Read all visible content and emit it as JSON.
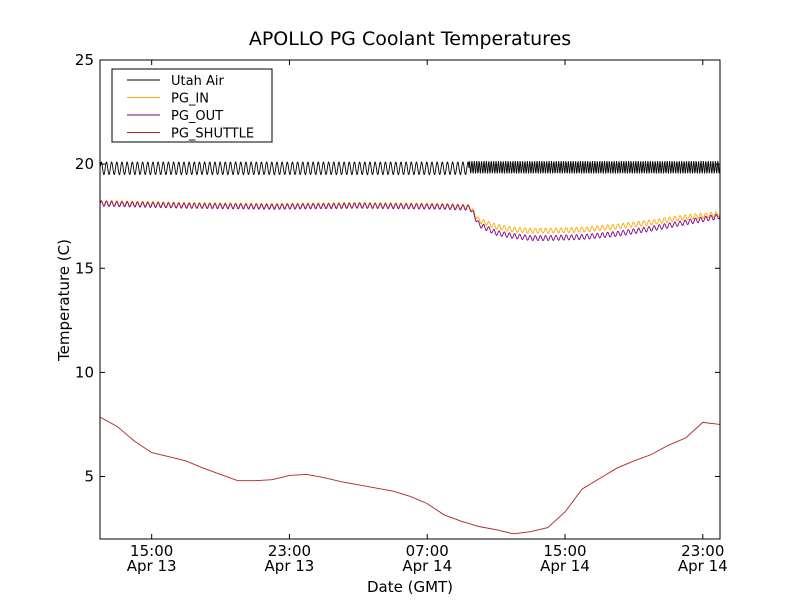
{
  "chart_data": {
    "type": "line",
    "title": "APOLLO PG Coolant Temperatures",
    "xlabel": "Date (GMT)",
    "ylabel": "Temperature (C)",
    "x_unit": "hours since Apr 13 12:00 GMT (approx.)",
    "xlim": [
      0,
      36
    ],
    "ylim": [
      2,
      25
    ],
    "yticks": [
      5,
      10,
      15,
      20,
      25
    ],
    "xticks": [
      {
        "x": 3,
        "time": "15:00",
        "date": "Apr 13"
      },
      {
        "x": 11,
        "time": "23:00",
        "date": "Apr 13"
      },
      {
        "x": 19,
        "time": "07:00",
        "date": "Apr 14"
      },
      {
        "x": 27,
        "time": "15:00",
        "date": "Apr 14"
      },
      {
        "x": 35,
        "time": "23:00",
        "date": "Apr 14"
      }
    ],
    "legend_position": "top-left",
    "series": [
      {
        "name": "Utah Air",
        "color": "#000000",
        "oscillation": 0.3,
        "points": [
          [
            0,
            19.8
          ],
          [
            21.4,
            19.8
          ],
          [
            21.5,
            19.85
          ],
          [
            36,
            19.85
          ]
        ]
      },
      {
        "name": "PG_IN",
        "color": "#ffa500",
        "oscillation": 0.12,
        "points": [
          [
            0,
            18.15
          ],
          [
            5,
            18.05
          ],
          [
            10,
            18.0
          ],
          [
            15,
            18.05
          ],
          [
            20,
            18.0
          ],
          [
            21.5,
            17.95
          ],
          [
            22,
            17.3
          ],
          [
            23,
            17.0
          ],
          [
            24,
            16.85
          ],
          [
            25,
            16.8
          ],
          [
            26,
            16.8
          ],
          [
            28,
            16.85
          ],
          [
            30,
            17.0
          ],
          [
            32,
            17.2
          ],
          [
            34,
            17.45
          ],
          [
            36,
            17.6
          ]
        ]
      },
      {
        "name": "PG_OUT",
        "color": "#800080",
        "oscillation": 0.12,
        "points": [
          [
            0,
            18.1
          ],
          [
            5,
            18.0
          ],
          [
            10,
            17.95
          ],
          [
            15,
            18.0
          ],
          [
            20,
            17.95
          ],
          [
            21.5,
            17.9
          ],
          [
            22,
            17.1
          ],
          [
            23,
            16.7
          ],
          [
            24,
            16.55
          ],
          [
            25,
            16.45
          ],
          [
            26,
            16.45
          ],
          [
            28,
            16.5
          ],
          [
            30,
            16.65
          ],
          [
            32,
            16.9
          ],
          [
            34,
            17.2
          ],
          [
            36,
            17.5
          ]
        ]
      },
      {
        "name": "PG_SHUTTLE",
        "color": "#b22222",
        "oscillation": 0,
        "points": [
          [
            0,
            7.85
          ],
          [
            1,
            7.4
          ],
          [
            2,
            6.7
          ],
          [
            3,
            6.15
          ],
          [
            4,
            5.95
          ],
          [
            5,
            5.75
          ],
          [
            6,
            5.4
          ],
          [
            7,
            5.1
          ],
          [
            8,
            4.8
          ],
          [
            9,
            4.8
          ],
          [
            10,
            4.85
          ],
          [
            11,
            5.05
          ],
          [
            12,
            5.1
          ],
          [
            13,
            4.95
          ],
          [
            14,
            4.75
          ],
          [
            15,
            4.6
          ],
          [
            16,
            4.45
          ],
          [
            17,
            4.3
          ],
          [
            18,
            4.05
          ],
          [
            19,
            3.7
          ],
          [
            20,
            3.15
          ],
          [
            21,
            2.85
          ],
          [
            22,
            2.6
          ],
          [
            23,
            2.45
          ],
          [
            24,
            2.25
          ],
          [
            25,
            2.35
          ],
          [
            26,
            2.55
          ],
          [
            27,
            3.3
          ],
          [
            28,
            4.4
          ],
          [
            29,
            4.9
          ],
          [
            30,
            5.4
          ],
          [
            31,
            5.75
          ],
          [
            32,
            6.05
          ],
          [
            33,
            6.5
          ],
          [
            34,
            6.85
          ],
          [
            35,
            7.6
          ],
          [
            36,
            7.5
          ]
        ]
      }
    ]
  }
}
